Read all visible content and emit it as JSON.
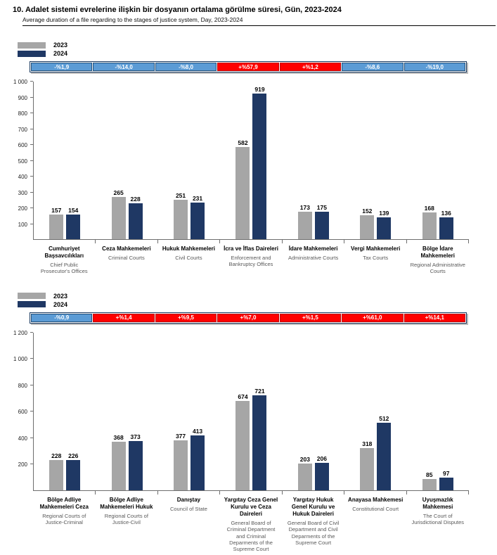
{
  "page": {
    "title": "10. Adalet sistemi evrelerine ilişkin bir dosyanın ortalama görülme süresi, Gün, 2023-2024",
    "subtitle": "Average duration of a file regarding to the stages of justice system, Day, 2023-2024"
  },
  "colors": {
    "bar_2023": "#A6A6A6",
    "bar_2024": "#1F3864",
    "decrease_fill": "#5B9BD5",
    "decrease_border": "#1F4E79",
    "increase_fill": "#FF0000",
    "increase_border": "#C00000",
    "frame": "#17375E",
    "axis": "#6e6e6e"
  },
  "legend": {
    "items": [
      {
        "label": "2023",
        "color_key": "bar_2023"
      },
      {
        "label": "2024",
        "color_key": "bar_2024"
      }
    ]
  },
  "chart_data": [
    {
      "type": "bar",
      "title": "Average duration of a file regarding to the stages of justice system, Day, 2023-2024 (first instance bodies)",
      "ylim": [
        0,
        1000
      ],
      "grid": false,
      "legend_position": "top-left",
      "yticks": [
        {
          "v": 100,
          "label": "100"
        },
        {
          "v": 200,
          "label": "200"
        },
        {
          "v": 300,
          "label": "300"
        },
        {
          "v": 400,
          "label": "400"
        },
        {
          "v": 500,
          "label": "500"
        },
        {
          "v": 600,
          "label": "600"
        },
        {
          "v": 700,
          "label": "700"
        },
        {
          "v": 800,
          "label": "800"
        },
        {
          "v": 900,
          "label": "900"
        },
        {
          "v": 1000,
          "label": "1 000"
        }
      ],
      "categories": [
        {
          "tr": "Cumhuriyet Başsavcılıkları",
          "en": "Chief Public Prosecutor's Offices"
        },
        {
          "tr": "Ceza Mahkemeleri",
          "en": "Criminal Courts"
        },
        {
          "tr": "Hukuk Mahkemeleri",
          "en": "Civil Courts"
        },
        {
          "tr": "İcra ve İflas Daireleri",
          "en": "Enforcement and Bankruptcy Offices"
        },
        {
          "tr": "İdare Mahkemeleri",
          "en": "Administrative Courts"
        },
        {
          "tr": "Vergi Mahkemeleri",
          "en": "Tax Courts"
        },
        {
          "tr": "Bölge İdare Mahkemeleri",
          "en": "Regional Administrative Courts"
        }
      ],
      "series": [
        {
          "name": "2023",
          "values": [
            157,
            265,
            251,
            582,
            173,
            152,
            168
          ]
        },
        {
          "name": "2024",
          "values": [
            154,
            228,
            231,
            919,
            175,
            139,
            136
          ]
        }
      ],
      "changes": [
        {
          "label": "-%1,9",
          "direction": "down"
        },
        {
          "label": "-%14,0",
          "direction": "down"
        },
        {
          "label": "-%8,0",
          "direction": "down"
        },
        {
          "label": "+%57,9",
          "direction": "up"
        },
        {
          "label": "+%1,2",
          "direction": "up"
        },
        {
          "label": "-%8,6",
          "direction": "down"
        },
        {
          "label": "-%19,0",
          "direction": "down"
        }
      ]
    },
    {
      "type": "bar",
      "title": "Average duration of a file regarding to the stages of justice system, Day, 2023-2024 (appeal and high courts)",
      "ylim": [
        0,
        1200
      ],
      "grid": false,
      "legend_position": "top-left",
      "yticks": [
        {
          "v": 200,
          "label": "200"
        },
        {
          "v": 400,
          "label": "400"
        },
        {
          "v": 600,
          "label": "600"
        },
        {
          "v": 800,
          "label": "800"
        },
        {
          "v": 1000,
          "label": "1 000"
        },
        {
          "v": 1200,
          "label": "1 200"
        }
      ],
      "categories": [
        {
          "tr": "Bölge Adliye Mahkemeleri Ceza",
          "en": "Regional Courts of Justice-Criminal"
        },
        {
          "tr": "Bölge Adliye Mahkemeleri Hukuk",
          "en": "Regional Courts of Justice-Civil"
        },
        {
          "tr": "Danıştay",
          "en": "Council of State"
        },
        {
          "tr": "Yargıtay Ceza Genel Kurulu ve Ceza Daireleri",
          "en": "General Board of Criminal Department and Criminal Deparments of the Supreme Court"
        },
        {
          "tr": "Yargıtay Hukuk Genel Kurulu ve Hukuk Daireleri",
          "en": "General Board of Civil Department and Civil Deparments of the Supreme Court"
        },
        {
          "tr": "Anayasa Mahkemesi",
          "en": "Constitutional Court"
        },
        {
          "tr": "Uyuşmazlık Mahkemesi",
          "en": "The Court of Jurisdictional Disputes"
        }
      ],
      "series": [
        {
          "name": "2023",
          "values": [
            228,
            368,
            377,
            674,
            203,
            318,
            85
          ]
        },
        {
          "name": "2024",
          "values": [
            226,
            373,
            413,
            721,
            206,
            512,
            97
          ]
        }
      ],
      "changes": [
        {
          "label": "-%0,9",
          "direction": "down"
        },
        {
          "label": "+%1,4",
          "direction": "up"
        },
        {
          "label": "+%9,5",
          "direction": "up"
        },
        {
          "label": "+%7,0",
          "direction": "up"
        },
        {
          "label": "+%1,5",
          "direction": "up"
        },
        {
          "label": "+%61,0",
          "direction": "up"
        },
        {
          "label": "+%14,1",
          "direction": "up"
        }
      ]
    }
  ]
}
